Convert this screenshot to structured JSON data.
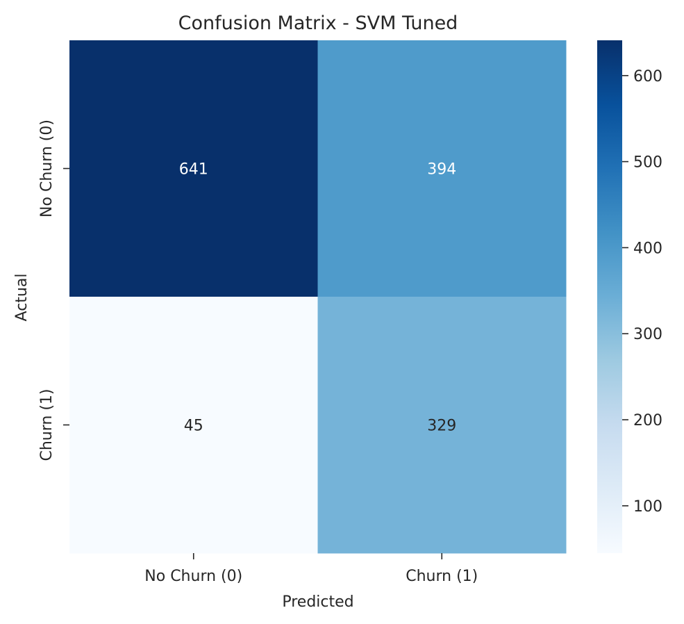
{
  "chart_data": {
    "type": "heatmap",
    "title": "Confusion Matrix - SVM Tuned",
    "xlabel": "Predicted",
    "ylabel": "Actual",
    "x_categories": [
      "No Churn (0)",
      "Churn (1)"
    ],
    "y_categories": [
      "No Churn (0)",
      "Churn (1)"
    ],
    "values": [
      [
        641,
        394
      ],
      [
        45,
        329
      ]
    ],
    "colormap": "Blues",
    "colorbar": {
      "min": 45,
      "max": 641,
      "ticks": [
        100,
        200,
        300,
        400,
        500,
        600
      ]
    },
    "colors": {
      "low": "#f7fbff",
      "high": "#08306b",
      "text_dark": "#262626",
      "text_light": "#ffffff"
    }
  }
}
